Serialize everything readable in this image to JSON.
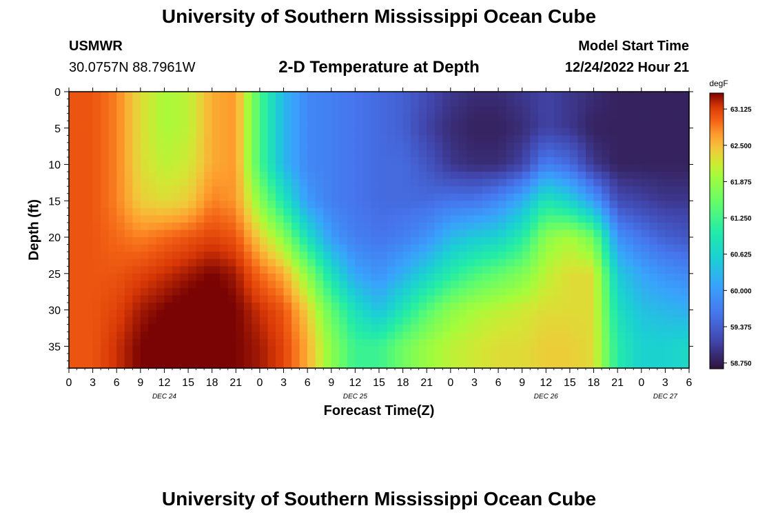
{
  "header": {
    "title": "University of Southern Mississippi Ocean Cube",
    "station": "USMWR",
    "coords": "30.0757N  88.7961W",
    "plot_title": "2-D Temperature at Depth",
    "model_label": "Model Start Time",
    "model_time": "12/24/2022 Hour 21"
  },
  "footer": {
    "title": "University of Southern Mississippi Ocean Cube"
  },
  "chart_data": {
    "type": "heatmap",
    "title": "2-D Temperature at Depth",
    "xlabel": "Forecast Time(Z)",
    "ylabel": "Depth (ft)",
    "colorbar_unit": "degF",
    "xlim": [
      0,
      78
    ],
    "ylim": [
      0,
      38
    ],
    "x_tick_labels": [
      "0",
      "3",
      "6",
      "9",
      "12",
      "15",
      "18",
      "21",
      "0",
      "3",
      "6",
      "9",
      "12",
      "15",
      "18",
      "21",
      "0",
      "3",
      "6",
      "9",
      "12",
      "15",
      "18",
      "21",
      "0",
      "3",
      "6"
    ],
    "date_labels": [
      {
        "label": "DEC 24",
        "hour": 12
      },
      {
        "label": "DEC 25",
        "hour": 36
      },
      {
        "label": "DEC 26",
        "hour": 60
      },
      {
        "label": "DEC 27",
        "hour": 75
      }
    ],
    "y_tick_labels": [
      "0",
      "5",
      "10",
      "15",
      "20",
      "25",
      "30",
      "35"
    ],
    "colorbar_range": [
      58.65,
      63.4
    ],
    "colorbar_labels": [
      "63.125",
      "62.500",
      "61.875",
      "61.250",
      "60.625",
      "60.000",
      "59.375",
      "58.750"
    ],
    "hours": [
      0,
      3,
      6,
      9,
      12,
      15,
      18,
      21,
      24,
      27,
      30,
      33,
      36,
      39,
      42,
      45,
      48,
      51,
      54,
      57,
      60,
      63,
      66,
      69,
      72,
      75,
      78
    ],
    "depths": [
      0,
      5,
      10,
      15,
      20,
      25,
      30,
      35,
      38
    ],
    "values_degF": [
      [
        63.0,
        63.0,
        63.0,
        63.0,
        63.0,
        63.0,
        63.0,
        63.0,
        63.0
      ],
      [
        63.0,
        63.0,
        63.0,
        63.0,
        63.0,
        63.0,
        63.0,
        63.0,
        63.0
      ],
      [
        62.8,
        62.8,
        62.8,
        62.8,
        62.9,
        63.0,
        63.1,
        63.2,
        63.2
      ],
      [
        62.3,
        62.3,
        62.3,
        62.4,
        62.8,
        63.1,
        63.3,
        63.4,
        63.4
      ],
      [
        62.0,
        62.0,
        62.1,
        62.3,
        62.9,
        63.2,
        63.4,
        63.5,
        63.5
      ],
      [
        62.1,
        62.1,
        62.2,
        62.4,
        63.0,
        63.3,
        63.5,
        63.5,
        63.5
      ],
      [
        62.6,
        62.6,
        62.6,
        62.8,
        63.1,
        63.4,
        63.5,
        63.5,
        63.5
      ],
      [
        62.7,
        62.7,
        62.7,
        62.7,
        63.0,
        63.3,
        63.4,
        63.4,
        63.4
      ],
      [
        61.3,
        61.3,
        61.3,
        61.8,
        62.4,
        62.9,
        63.2,
        63.3,
        63.3
      ],
      [
        60.3,
        60.3,
        60.3,
        60.9,
        61.8,
        62.6,
        63.0,
        63.1,
        63.1
      ],
      [
        59.8,
        59.8,
        59.8,
        60.0,
        60.8,
        61.8,
        62.4,
        62.6,
        62.6
      ],
      [
        59.7,
        59.7,
        59.7,
        59.7,
        60.0,
        60.8,
        61.5,
        61.8,
        61.8
      ],
      [
        59.6,
        59.6,
        59.6,
        59.6,
        59.7,
        60.1,
        60.8,
        61.2,
        61.2
      ],
      [
        59.5,
        59.5,
        59.5,
        59.5,
        59.6,
        59.9,
        60.4,
        61.2,
        61.2
      ],
      [
        59.4,
        59.4,
        59.5,
        59.5,
        59.7,
        60.2,
        60.9,
        61.6,
        61.6
      ],
      [
        59.2,
        59.1,
        59.3,
        59.5,
        59.9,
        60.6,
        61.4,
        61.9,
        61.9
      ],
      [
        59.0,
        58.9,
        59.0,
        59.6,
        60.3,
        61.0,
        61.8,
        62.1,
        62.1
      ],
      [
        58.9,
        58.8,
        58.9,
        59.6,
        60.5,
        61.3,
        62.0,
        62.2,
        62.2
      ],
      [
        58.9,
        58.8,
        58.9,
        59.8,
        60.6,
        61.5,
        62.1,
        62.3,
        62.3
      ],
      [
        59.0,
        58.9,
        59.1,
        60.2,
        61.0,
        61.7,
        62.2,
        62.3,
        62.3
      ],
      [
        59.1,
        59.1,
        59.7,
        60.9,
        61.8,
        62.1,
        62.3,
        62.4,
        62.4
      ],
      [
        59.0,
        59.0,
        59.5,
        60.6,
        62.0,
        62.3,
        62.3,
        62.4,
        62.4
      ],
      [
        58.9,
        58.8,
        59.0,
        60.0,
        61.6,
        62.3,
        62.3,
        62.3,
        62.3
      ],
      [
        58.8,
        58.8,
        58.8,
        59.2,
        59.9,
        60.5,
        60.8,
        61.0,
        61.0
      ],
      [
        58.8,
        58.8,
        58.8,
        59.1,
        59.6,
        60.1,
        60.4,
        60.6,
        60.6
      ],
      [
        58.8,
        58.8,
        58.8,
        59.0,
        59.4,
        59.9,
        60.3,
        60.6,
        60.6
      ],
      [
        58.8,
        58.8,
        58.8,
        59.0,
        59.3,
        59.8,
        60.2,
        60.7,
        60.7
      ]
    ]
  }
}
